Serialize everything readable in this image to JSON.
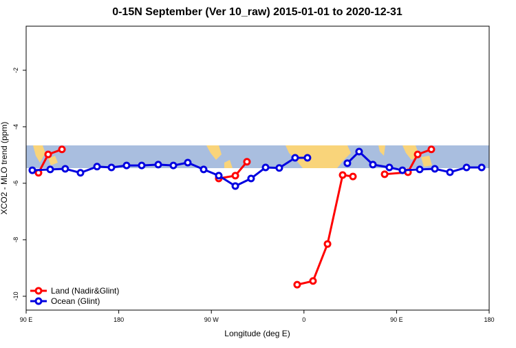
{
  "chart_data": {
    "type": "line",
    "title": "0-15N September (Ver 10_raw)   2015-01-01 to 2020-12-31",
    "x_label": "Longitude (deg E)",
    "y_label": "XCO2 - MLO trend (ppm)",
    "xlim": [
      90,
      540
    ],
    "xticks": [
      {
        "value": 90,
        "label": "90 E"
      },
      {
        "value": 180,
        "label": "180"
      },
      {
        "value": 270,
        "label": "90 W"
      },
      {
        "value": 360,
        "label": "0"
      },
      {
        "value": 450,
        "label": "90 E"
      },
      {
        "value": 540,
        "label": "180"
      }
    ],
    "ylim": [
      -10.49,
      -0.44
    ],
    "yticks": [
      -2,
      -4,
      -6,
      -8,
      -10
    ],
    "legend": "bottom-left",
    "series": [
      {
        "name": "Land (Nadir&Glint)",
        "color": "#ff0000",
        "x": [
          102,
          111.4,
          124.8,
          200,
          277.2,
          293.3,
          304.6,
          330,
          353.4,
          368.8,
          382.9,
          397.6,
          407.6,
          420,
          438.4,
          461.1,
          470.5,
          483.8
        ],
        "values": [
          -5.63,
          -4.98,
          -4.8,
          null,
          -5.83,
          -5.73,
          -5.24,
          null,
          -9.59,
          -9.46,
          -8.15,
          -5.71,
          -5.76,
          null,
          -5.68,
          -5.61,
          -4.98,
          -4.8
        ]
      },
      {
        "name": "Ocean (Glint)",
        "color": "#0000e0",
        "x": [
          96,
          113.4,
          128,
          142.8,
          158.9,
          172.9,
          187.6,
          202.3,
          218.4,
          233.1,
          247.1,
          262.5,
          277.2,
          293.3,
          308.6,
          322.7,
          336,
          351.4,
          363.4,
          380,
          402.2,
          413.6,
          427,
          443,
          455.7,
          472.5,
          487.2,
          501.9,
          518,
          532.7
        ],
        "values": [
          -5.54,
          -5.51,
          -5.49,
          -5.63,
          -5.41,
          -5.44,
          -5.37,
          -5.37,
          -5.34,
          -5.37,
          -5.27,
          -5.51,
          -5.73,
          -6.1,
          -5.83,
          -5.44,
          -5.46,
          -5.1,
          -5.1,
          null,
          -5.29,
          -4.88,
          -5.34,
          -5.44,
          -5.54,
          -5.51,
          -5.49,
          -5.61,
          -5.44,
          -5.44
        ]
      }
    ]
  }
}
